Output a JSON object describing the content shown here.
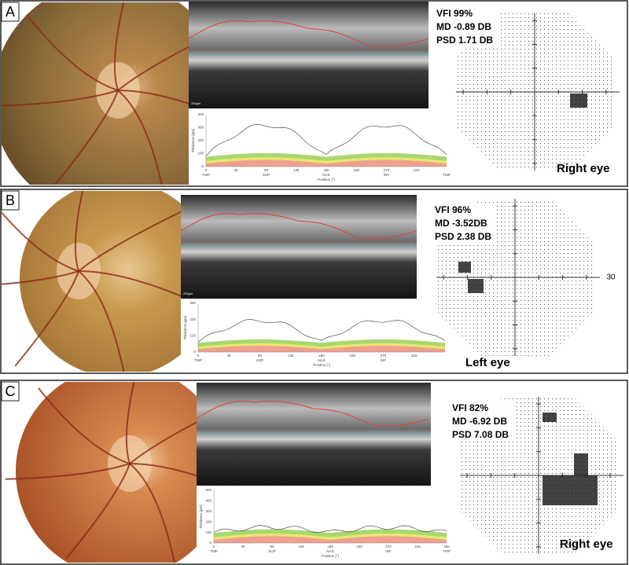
{
  "panels": [
    {
      "label": "A",
      "stats": [
        "VFI 99%",
        "MD -0.89 DB",
        "PSD 1.71 DB"
      ],
      "eye": "Right eye",
      "scale_bar": "200µm",
      "plot": {
        "y_axis_label": "Thickness [µm]",
        "x_axis_label": "Position [°]",
        "yticks": [
          0,
          100,
          200,
          300,
          400
        ],
        "xticks": [
          0,
          45,
          90,
          135,
          180,
          225,
          270,
          315
        ],
        "sectors": [
          "TMP",
          "SUP",
          "NAS",
          "INF",
          "TMP"
        ]
      }
    },
    {
      "label": "B",
      "stats": [
        "VFI 96%",
        "MD -3.52DB",
        "PSD 2.38 DB"
      ],
      "eye": "Left eye",
      "scale_bar": "200µm",
      "field_label": "30",
      "plot": {
        "y_axis_label": "Thickness [µm]",
        "x_axis_label": "Position [°]",
        "yticks": [
          0,
          120,
          240,
          360
        ],
        "xticks": [
          0,
          45,
          90,
          135,
          180,
          225,
          270,
          315
        ],
        "sectors": [
          "TMP",
          "SUP",
          "NAS",
          "INF"
        ]
      }
    },
    {
      "label": "C",
      "stats": [
        "VFI 82%",
        "MD -6.92 DB",
        "PSD 7.08 DB"
      ],
      "eye": "Right eye",
      "plot": {
        "y_axis_label": "Thickness [µm]",
        "x_axis_label": "Position [°]",
        "yticks": [
          0,
          100,
          200,
          300,
          400,
          500
        ],
        "xticks": [
          0,
          45,
          90,
          135,
          180,
          225,
          270,
          315,
          360
        ],
        "sectors": [
          "TMP",
          "SUP",
          "NAS",
          "INF",
          "TMP"
        ]
      }
    }
  ]
}
